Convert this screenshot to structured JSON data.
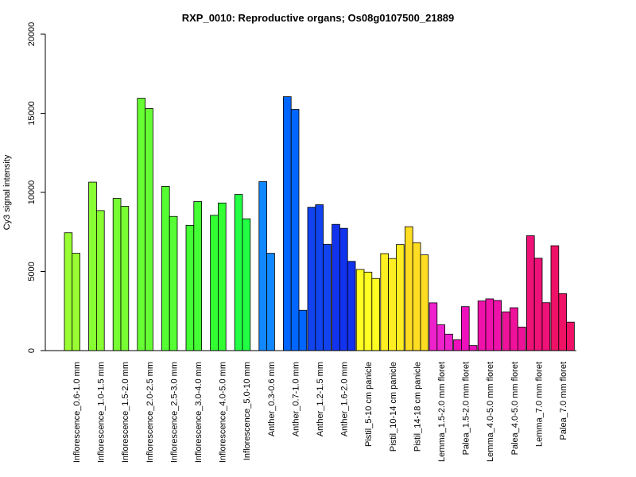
{
  "chart_data": {
    "type": "bar",
    "title": "RXP_0010: Reproductive organs; Os08g0107500_21889",
    "xlabel": "",
    "ylabel": "Cy3 signal intensity",
    "ylim": [
      0,
      20000
    ],
    "yticks": [
      0,
      5000,
      10000,
      15000,
      20000
    ],
    "ytick_labels": [
      "0",
      "5000",
      "10000",
      "15000",
      "20000"
    ],
    "grid": false,
    "legend": "none",
    "groups": [
      {
        "label": "Inflorescence_0.6-1.0 mm",
        "color": "#99ff33",
        "values": [
          7450,
          6150
        ]
      },
      {
        "label": "Inflorescence_1.0-1.5 mm",
        "color": "#88ff33",
        "values": [
          10650,
          8850
        ]
      },
      {
        "label": "Inflorescence_1.5-2.0 mm",
        "color": "#77ff33",
        "values": [
          9620,
          9120
        ]
      },
      {
        "label": "Inflorescence_2.0-2.5 mm",
        "color": "#66ff33",
        "values": [
          15950,
          15300
        ]
      },
      {
        "label": "Inflorescence_2.5-3.0 mm",
        "color": "#55ff33",
        "values": [
          10380,
          8480
        ]
      },
      {
        "label": "Inflorescence_3.0-4.0 mm",
        "color": "#44ff33",
        "values": [
          7920,
          9420
        ]
      },
      {
        "label": "Inflorescence_4.0-5.0 mm",
        "color": "#33ff33",
        "values": [
          8550,
          9330
        ]
      },
      {
        "label": "Inflorescence_5.0-10 mm",
        "color": "#22ff44",
        "values": [
          9870,
          8330
        ]
      },
      {
        "label": "Anther_0.3-0.6 mm",
        "color": "#1188ff",
        "values": [
          10680,
          6150
        ]
      },
      {
        "label": "Anther_0.7-1.0 mm",
        "color": "#0066ff",
        "values": [
          16050,
          15250,
          2550
        ]
      },
      {
        "label": "Anther_1.2-1.5 mm",
        "color": "#1144ee",
        "values": [
          9060,
          9220,
          6720
        ]
      },
      {
        "label": "Anther_1.6-2.0 mm",
        "color": "#1133ee",
        "values": [
          7980,
          7730,
          5640
        ]
      },
      {
        "label": "Pistil_5-10 cm panicle",
        "color": "#ffff22",
        "values": [
          5130,
          4960,
          4560
        ]
      },
      {
        "label": "Pistil_10-14 cm panicle",
        "color": "#ffee22",
        "values": [
          6130,
          5820,
          6700
        ]
      },
      {
        "label": "Pistil_14-18 cm panicle",
        "color": "#ffdd22",
        "values": [
          7830,
          6820,
          6050
        ]
      },
      {
        "label": "Lemma_1.5-2.0 mm floret",
        "color": "#ee22cc",
        "values": [
          3020,
          1630,
          1040
        ]
      },
      {
        "label": "Palea_1.5-2.0 mm floret",
        "color": "#ee11bb",
        "values": [
          690,
          2780,
          320
        ]
      },
      {
        "label": "Lemma_4.0-5.0 mm floret",
        "color": "#ee11aa",
        "values": [
          3140,
          3270,
          3170
        ]
      },
      {
        "label": "Palea_4.0-5.0 mm floret",
        "color": "#ee1199",
        "values": [
          2450,
          2710,
          1490
        ]
      },
      {
        "label": "Lemma_7.0 mm floret",
        "color": "#ee1177",
        "values": [
          7260,
          5840,
          3030
        ]
      },
      {
        "label": "Palea_7.0 mm floret",
        "color": "#ee1166",
        "values": [
          6630,
          3600,
          1800
        ]
      }
    ]
  }
}
